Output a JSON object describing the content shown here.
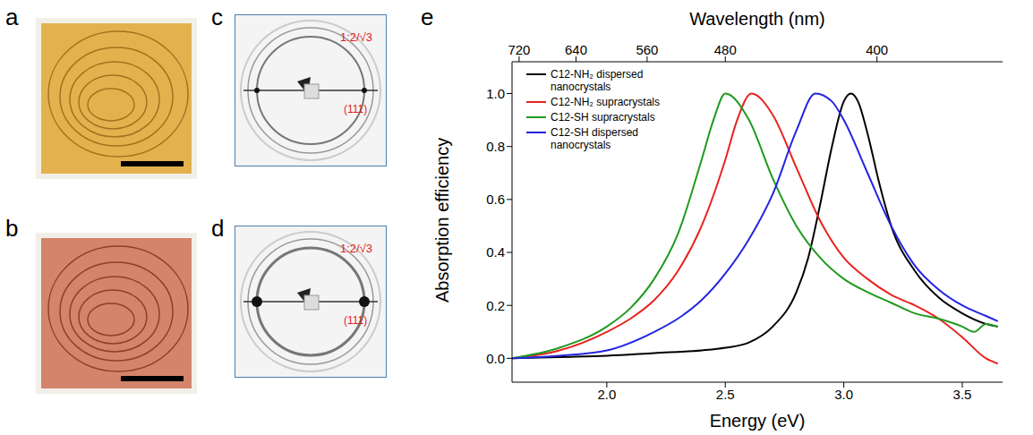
{
  "panel_labels": [
    "a",
    "b",
    "c",
    "d",
    "e"
  ],
  "annotations": {
    "c": [
      "1:2/√3",
      "(111)"
    ],
    "d": [
      "1:2/√3",
      "(111)"
    ]
  },
  "chart_data": {
    "type": "line",
    "xlabel": "Energy (eV)",
    "ylabel": "Absorption efficiency",
    "x2label": "Wavelength (nm)",
    "xlim": [
      1.6,
      3.67
    ],
    "xticks": [
      {
        "value": 2,
        "label": "2.0"
      },
      {
        "value": 2.5,
        "label": "2.5"
      },
      {
        "value": 3,
        "label": "3.0"
      },
      {
        "value": 3.5,
        "label": "3.5"
      }
    ],
    "x2ticks": [
      {
        "value": 1.63,
        "label": "720"
      },
      {
        "value": 1.87,
        "label": "640"
      },
      {
        "value": 2.17,
        "label": "560"
      },
      {
        "value": 2.5,
        "label": "480"
      },
      {
        "value": 3.14,
        "label": "400"
      }
    ],
    "ylim": [
      -0.09,
      1.12
    ],
    "yticks": [
      {
        "value": 0,
        "label": "0.0"
      },
      {
        "value": 0.2,
        "label": "0.2"
      },
      {
        "value": 0.4,
        "label": "0.4"
      },
      {
        "value": 0.6,
        "label": "0.6"
      },
      {
        "value": 0.8,
        "label": "0.8"
      },
      {
        "value": 1,
        "label": "1.0"
      }
    ],
    "legend": "upper left",
    "series": [
      {
        "name": "C12-NH₂ dispersed nanocrystals",
        "color": "#000000",
        "x": [
          1.6,
          1.8,
          2.0,
          2.2,
          2.4,
          2.5,
          2.6,
          2.7,
          2.8,
          2.85,
          2.9,
          2.95,
          3.0,
          3.03,
          3.06,
          3.1,
          3.15,
          3.2,
          3.3,
          3.4,
          3.5,
          3.6,
          3.65
        ],
        "values": [
          0,
          0.005,
          0.01,
          0.02,
          0.03,
          0.04,
          0.06,
          0.12,
          0.25,
          0.38,
          0.58,
          0.8,
          0.97,
          1.0,
          0.97,
          0.85,
          0.66,
          0.5,
          0.33,
          0.23,
          0.17,
          0.13,
          0.12
        ]
      },
      {
        "name": "C12-NH₂ supracrystals",
        "color": "#e8231e",
        "x": [
          1.6,
          1.8,
          2.0,
          2.1,
          2.2,
          2.3,
          2.4,
          2.5,
          2.55,
          2.61,
          2.7,
          2.8,
          2.9,
          3.0,
          3.1,
          3.2,
          3.3,
          3.4,
          3.5,
          3.6,
          3.65
        ],
        "values": [
          0,
          0.03,
          0.1,
          0.15,
          0.22,
          0.33,
          0.5,
          0.75,
          0.9,
          1.0,
          0.92,
          0.72,
          0.52,
          0.38,
          0.3,
          0.24,
          0.2,
          0.15,
          0.08,
          0.0,
          -0.02
        ]
      },
      {
        "name": "C12-SH supracrystals",
        "color": "#1f9a1f",
        "x": [
          1.6,
          1.8,
          2.0,
          2.1,
          2.2,
          2.3,
          2.4,
          2.45,
          2.5,
          2.6,
          2.7,
          2.8,
          2.9,
          3.0,
          3.1,
          3.2,
          3.3,
          3.4,
          3.5,
          3.55,
          3.6,
          3.65
        ],
        "values": [
          0,
          0.04,
          0.12,
          0.19,
          0.3,
          0.47,
          0.75,
          0.9,
          1.0,
          0.9,
          0.68,
          0.5,
          0.38,
          0.3,
          0.25,
          0.21,
          0.17,
          0.15,
          0.12,
          0.1,
          0.13,
          0.12
        ]
      },
      {
        "name": "C12-SH dispersed nanocrystals",
        "color": "#2424e0",
        "x": [
          1.6,
          1.8,
          2.0,
          2.2,
          2.3,
          2.4,
          2.5,
          2.6,
          2.7,
          2.8,
          2.88,
          2.95,
          3.0,
          3.1,
          3.2,
          3.3,
          3.4,
          3.5,
          3.6,
          3.65
        ],
        "values": [
          0,
          0.01,
          0.03,
          0.1,
          0.15,
          0.22,
          0.32,
          0.45,
          0.62,
          0.86,
          1.0,
          0.97,
          0.9,
          0.7,
          0.5,
          0.35,
          0.26,
          0.2,
          0.16,
          0.14
        ]
      }
    ]
  }
}
